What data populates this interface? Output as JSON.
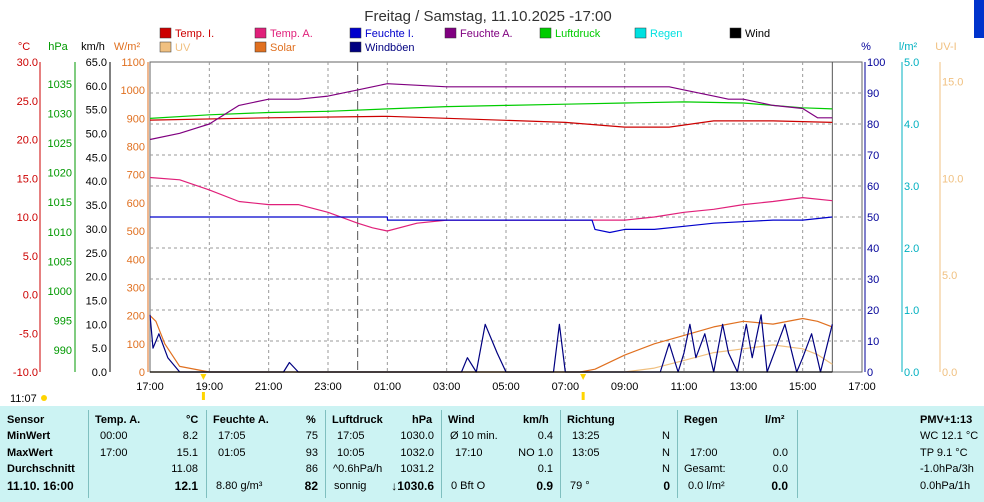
{
  "chart_data": {
    "type": "line",
    "title": "Freitag / Samstag, 11.10.2025  -17:00",
    "x_ticks": [
      "17:00",
      "19:00",
      "21:00",
      "23:00",
      "01:00",
      "03:00",
      "05:00",
      "07:00",
      "09:00",
      "11:00",
      "13:00",
      "15:00",
      "17:00"
    ],
    "axes": [
      {
        "key": "c",
        "unit": "°C",
        "color": "#cc0000",
        "ticks": [
          "30.0",
          "25.0",
          "20.0",
          "15.0",
          "10.0",
          "5.0",
          "0.0",
          "-5.0",
          "-10.0"
        ],
        "range": [
          -10,
          30
        ]
      },
      {
        "key": "hpa",
        "unit": "hPa",
        "color": "#009900",
        "ticks": [
          "1035",
          "1030",
          "1025",
          "1020",
          "1015",
          "1010",
          "1005",
          "1000",
          "995",
          "990"
        ],
        "range": [
          990,
          1037.5
        ]
      },
      {
        "key": "kmh",
        "unit": "km/h",
        "color": "#000000",
        "ticks": [
          "65.0",
          "60.0",
          "55.0",
          "50.0",
          "45.0",
          "40.0",
          "35.0",
          "30.0",
          "25.0",
          "20.0",
          "15.0",
          "10.0",
          "5.0",
          "0.0"
        ],
        "range": [
          0,
          65
        ]
      },
      {
        "key": "wm2",
        "unit": "W/m²",
        "color": "#e07020",
        "ticks": [
          "1100",
          "1000",
          "900",
          "800",
          "700",
          "600",
          "500",
          "400",
          "300",
          "200",
          "100",
          "0"
        ],
        "range": [
          0,
          1100
        ]
      },
      {
        "key": "pct",
        "unit": "%",
        "color": "#000099",
        "ticks": [
          "100",
          "90",
          "80",
          "70",
          "60",
          "50",
          "40",
          "30",
          "20",
          "10",
          "0"
        ],
        "range": [
          0,
          100
        ]
      },
      {
        "key": "lm2",
        "unit": "l/m²",
        "color": "#00b0c0",
        "ticks": [
          "5.0",
          "4.0",
          "3.0",
          "2.0",
          "1.0",
          "0.0"
        ],
        "range": [
          0,
          5
        ]
      },
      {
        "key": "uv",
        "unit": "UV-I",
        "color": "#f0c080",
        "ticks": [
          "15.0",
          "10.0",
          "5.0",
          "0.0"
        ],
        "range": [
          0,
          16
        ]
      }
    ],
    "legend": [
      {
        "name": "Temp. I.",
        "color": "#cc0000"
      },
      {
        "name": "Temp. A.",
        "color": "#e0207a"
      },
      {
        "name": "Feuchte I.",
        "color": "#0000cc"
      },
      {
        "name": "Feuchte A.",
        "color": "#800080"
      },
      {
        "name": "Luftdruck",
        "color": "#00cc00"
      },
      {
        "name": "Regen",
        "color": "#00e0e0"
      },
      {
        "name": "Wind",
        "color": "#000000"
      },
      {
        "name": "UV",
        "color": "#f0c080"
      },
      {
        "name": "Solar",
        "color": "#e07020"
      },
      {
        "name": "Windböen",
        "color": "#000080"
      }
    ],
    "series": [
      {
        "name": "Temp. I.",
        "axis": "c",
        "color": "#cc0000",
        "hours": [
          0,
          4,
          8,
          11,
          14,
          16,
          17.5,
          19,
          21,
          23
        ],
        "values": [
          22.5,
          22.8,
          23.0,
          22.6,
          22.2,
          21.6,
          21.6,
          22.4,
          22.4,
          22.2
        ]
      },
      {
        "name": "Luftdruck",
        "axis": "hpa",
        "color": "#00cc00",
        "hours": [
          0,
          2,
          4,
          6,
          8,
          10,
          12,
          14,
          16,
          18,
          20,
          22,
          23
        ],
        "values": [
          1029.2,
          1029.8,
          1030.2,
          1030.4,
          1030.8,
          1031.2,
          1031.4,
          1031.6,
          1031.8,
          1032.0,
          1031.8,
          1031.0,
          1030.8
        ]
      },
      {
        "name": "Feuchte A.",
        "axis": "pct",
        "color": "#800080",
        "hours": [
          0,
          1,
          2,
          3,
          4,
          5,
          6,
          7,
          7.5,
          8,
          10,
          12,
          14,
          16,
          17,
          17.5,
          18,
          19,
          19.5,
          20,
          21,
          22,
          22.5,
          23
        ],
        "values": [
          75,
          77,
          80,
          86,
          88,
          88,
          89,
          91,
          92,
          93,
          92,
          92,
          92,
          92,
          92,
          92,
          91,
          89,
          88,
          88,
          86,
          85,
          82,
          82
        ]
      },
      {
        "name": "Temp. A.",
        "axis": "c",
        "color": "#e0207a",
        "hours": [
          0,
          1,
          2,
          3,
          4,
          5,
          6,
          7,
          7.5,
          8,
          9,
          10,
          12,
          14,
          15,
          16,
          17,
          18,
          19,
          20,
          21,
          22,
          23
        ],
        "values": [
          15.1,
          14.8,
          13.5,
          12.0,
          11.6,
          11.6,
          10.6,
          9.2,
          8.6,
          8.2,
          9.2,
          9.6,
          9.6,
          9.6,
          9.6,
          9.6,
          10.0,
          10.6,
          11.0,
          11.6,
          12.0,
          12.5,
          12.1
        ]
      },
      {
        "name": "Feuchte I.",
        "axis": "pct",
        "color": "#0000cc",
        "hours": [
          0,
          0.01,
          4,
          8,
          8.01,
          12,
          14,
          14.9,
          15,
          15.5,
          16,
          17,
          18,
          19,
          21,
          22,
          23
        ],
        "values": [
          50,
          50,
          50,
          50,
          49,
          49,
          49,
          49,
          46,
          45,
          46,
          46,
          47,
          48,
          49,
          49,
          50
        ]
      },
      {
        "name": "Solar",
        "axis": "wm2",
        "color": "#e07020",
        "hours": [
          0,
          0.2,
          0.5,
          1,
          2,
          14.5,
          15,
          16,
          17,
          18,
          19,
          20,
          21,
          22,
          22.5,
          23
        ],
        "values": [
          200,
          180,
          100,
          20,
          0,
          0,
          10,
          60,
          100,
          130,
          160,
          180,
          170,
          190,
          180,
          160
        ]
      },
      {
        "name": "UV",
        "axis": "uv",
        "color": "#f0c080",
        "hours": [
          0,
          16,
          17,
          18,
          19,
          20,
          21,
          22,
          22.5,
          23
        ],
        "values": [
          0,
          0,
          0.2,
          0.6,
          1.0,
          1.2,
          1.4,
          1.2,
          0.9,
          0.4
        ]
      },
      {
        "name": "Windböen",
        "axis": "kmh",
        "color": "#000080",
        "hours": [
          0,
          0.1,
          0.3,
          0.6,
          1,
          2,
          4.5,
          4.7,
          5,
          10.5,
          10.7,
          11,
          11.3,
          11.7,
          12,
          13.6,
          13.8,
          14,
          17.2,
          17.5,
          17.8,
          18,
          18.2,
          18.4,
          18.7,
          19,
          19.3,
          19.5,
          19.8,
          20.1,
          20.3,
          20.6,
          20.8,
          21.1,
          21.4,
          21.8,
          22,
          22.3,
          22.6,
          23
        ],
        "values": [
          12,
          5,
          8,
          3,
          0,
          0,
          0,
          2,
          0,
          0,
          3,
          0,
          10,
          4,
          0,
          0,
          10,
          0,
          0,
          6,
          0,
          4,
          10,
          3,
          8,
          0,
          10,
          4,
          0,
          10,
          3,
          12,
          0,
          5,
          10,
          0,
          3,
          8,
          0,
          10
        ]
      },
      {
        "name": "Wind",
        "axis": "kmh",
        "color": "#000000",
        "hours": [
          0,
          1,
          2,
          23
        ],
        "values": [
          0,
          0,
          0,
          0
        ]
      }
    ]
  },
  "header": {
    "clock": "11:07"
  },
  "panel": {
    "sensor": {
      "title": "Sensor",
      "rows": [
        "MinWert",
        "MaxWert",
        "Durchschnitt"
      ],
      "current": "11.10. 16:00"
    },
    "temp": {
      "title": "Temp. A.",
      "unit": "°C",
      "rows": [
        [
          "00:00",
          "8.2"
        ],
        [
          "17:00",
          "15.1"
        ],
        [
          "",
          "11.08"
        ]
      ],
      "current": "12.1"
    },
    "hum": {
      "title": "Feuchte A.",
      "unit": "%",
      "rows": [
        [
          "17:05",
          "75"
        ],
        [
          "01:05",
          "93"
        ],
        [
          "",
          "86"
        ]
      ],
      "current_abs": "8.80 g/m³",
      "current": "82"
    },
    "press": {
      "title": "Luftdruck",
      "unit": "hPa",
      "rows": [
        [
          "17:05",
          "1030.0"
        ],
        [
          "10:05",
          "1032.0"
        ],
        [
          "^0.6hPa/h",
          "1031.2"
        ]
      ],
      "current_txt": "sonnig",
      "current": "↓1030.6"
    },
    "wind": {
      "title": "Wind",
      "unit": "km/h",
      "rows": [
        [
          "Ø 10 min.",
          "0.4"
        ],
        [
          "17:10",
          "NO 1.0"
        ],
        [
          "",
          "0.1"
        ]
      ],
      "current_txt": "0 Bft O",
      "current": "0.9"
    },
    "dir": {
      "title": "Richtung",
      "rows": [
        [
          "13:25",
          "N"
        ],
        [
          "13:05",
          "N"
        ],
        [
          "",
          "N"
        ]
      ],
      "current_txt": "79 °",
      "current": "0"
    },
    "rain": {
      "title": "Regen",
      "unit": "l/m²",
      "rows": [
        [
          "",
          ""
        ],
        [
          "17:00",
          "0.0"
        ],
        [
          "Gesamt:",
          "0.0"
        ]
      ],
      "current_txt": "0.0 l/m²",
      "current": "0.0"
    },
    "pmv": {
      "title": "PMV+1:13",
      "rows": [
        "WC 12.1 °C",
        "TP 9.1 °C",
        "-1.0hPa/3h",
        "0.0hPa/1h"
      ]
    }
  }
}
